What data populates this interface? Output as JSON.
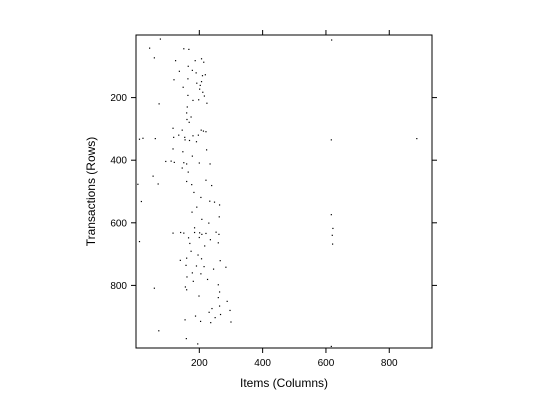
{
  "chart_data": {
    "type": "scatter",
    "title": "",
    "xlabel": "Items (Columns)",
    "ylabel": "Transactions (Rows)",
    "xlim": [
      0,
      935
    ],
    "ylim": [
      1000,
      0
    ],
    "grid": false,
    "legend": "none",
    "x_ticks": [
      200,
      400,
      600,
      800
    ],
    "y_ticks": [
      200,
      400,
      600,
      800
    ],
    "x_tick_labels": [
      "200",
      "400",
      "600",
      "800"
    ],
    "y_tick_labels": [
      "200",
      "400",
      "600",
      "800"
    ],
    "point_color": "#000000",
    "points": [
      [
        77,
        13
      ],
      [
        43,
        42
      ],
      [
        151,
        44
      ],
      [
        167,
        46
      ],
      [
        58,
        73
      ],
      [
        207,
        76
      ],
      [
        187,
        82
      ],
      [
        125,
        82
      ],
      [
        214,
        87
      ],
      [
        165,
        100
      ],
      [
        178,
        113
      ],
      [
        137,
        116
      ],
      [
        190,
        121
      ],
      [
        219,
        127
      ],
      [
        210,
        130
      ],
      [
        164,
        140
      ],
      [
        120,
        143
      ],
      [
        207,
        149
      ],
      [
        192,
        154
      ],
      [
        203,
        161
      ],
      [
        149,
        167
      ],
      [
        201,
        173
      ],
      [
        211,
        183
      ],
      [
        164,
        193
      ],
      [
        216,
        195
      ],
      [
        198,
        207
      ],
      [
        180,
        209
      ],
      [
        224,
        218
      ],
      [
        73,
        220
      ],
      [
        162,
        230
      ],
      [
        160,
        249
      ],
      [
        174,
        262
      ],
      [
        161,
        270
      ],
      [
        168,
        279
      ],
      [
        117,
        298
      ],
      [
        146,
        304
      ],
      [
        206,
        304
      ],
      [
        213,
        307
      ],
      [
        221,
        309
      ],
      [
        135,
        320
      ],
      [
        197,
        320
      ],
      [
        180,
        322
      ],
      [
        119,
        327
      ],
      [
        154,
        327
      ],
      [
        22,
        330
      ],
      [
        61,
        331
      ],
      [
        11,
        333
      ],
      [
        155,
        335
      ],
      [
        169,
        337
      ],
      [
        191,
        341
      ],
      [
        617,
        335
      ],
      [
        887,
        331
      ],
      [
        117,
        364
      ],
      [
        223,
        367
      ],
      [
        148,
        373
      ],
      [
        178,
        387
      ],
      [
        94,
        404
      ],
      [
        111,
        403
      ],
      [
        121,
        407
      ],
      [
        151,
        408
      ],
      [
        160,
        412
      ],
      [
        200,
        409
      ],
      [
        234,
        412
      ],
      [
        146,
        425
      ],
      [
        165,
        438
      ],
      [
        54,
        451
      ],
      [
        221,
        464
      ],
      [
        160,
        468
      ],
      [
        70,
        476
      ],
      [
        176,
        478
      ],
      [
        6,
        477
      ],
      [
        239,
        481
      ],
      [
        183,
        503
      ],
      [
        205,
        519
      ],
      [
        233,
        531
      ],
      [
        17,
        532
      ],
      [
        248,
        534
      ],
      [
        264,
        543
      ],
      [
        192,
        550
      ],
      [
        177,
        566
      ],
      [
        617,
        574
      ],
      [
        263,
        581
      ],
      [
        208,
        589
      ],
      [
        230,
        601
      ],
      [
        185,
        616
      ],
      [
        622,
        618
      ],
      [
        253,
        630
      ],
      [
        117,
        633
      ],
      [
        141,
        631
      ],
      [
        151,
        633
      ],
      [
        185,
        631
      ],
      [
        201,
        632
      ],
      [
        208,
        637
      ],
      [
        262,
        637
      ],
      [
        221,
        634
      ],
      [
        620,
        640
      ],
      [
        200,
        647
      ],
      [
        166,
        648
      ],
      [
        235,
        654
      ],
      [
        11,
        660
      ],
      [
        170,
        666
      ],
      [
        260,
        664
      ],
      [
        621,
        668
      ],
      [
        217,
        674
      ],
      [
        174,
        691
      ],
      [
        196,
        703
      ],
      [
        160,
        713
      ],
      [
        207,
        715
      ],
      [
        140,
        720
      ],
      [
        266,
        721
      ],
      [
        158,
        736
      ],
      [
        191,
        738
      ],
      [
        215,
        740
      ],
      [
        284,
        742
      ],
      [
        245,
        748
      ],
      [
        178,
        760
      ],
      [
        205,
        763
      ],
      [
        161,
        773
      ],
      [
        226,
        781
      ],
      [
        181,
        787
      ],
      [
        260,
        798
      ],
      [
        156,
        805
      ],
      [
        58,
        809
      ],
      [
        160,
        814
      ],
      [
        264,
        821
      ],
      [
        199,
        834
      ],
      [
        260,
        839
      ],
      [
        288,
        851
      ],
      [
        264,
        866
      ],
      [
        240,
        874
      ],
      [
        297,
        880
      ],
      [
        231,
        886
      ],
      [
        267,
        893
      ],
      [
        188,
        898
      ],
      [
        250,
        903
      ],
      [
        155,
        910
      ],
      [
        204,
        915
      ],
      [
        300,
        917
      ],
      [
        236,
        919
      ],
      [
        72,
        945
      ],
      [
        159,
        970
      ],
      [
        195,
        987
      ],
      [
        617,
        995
      ],
      [
        618,
        16
      ]
    ]
  }
}
